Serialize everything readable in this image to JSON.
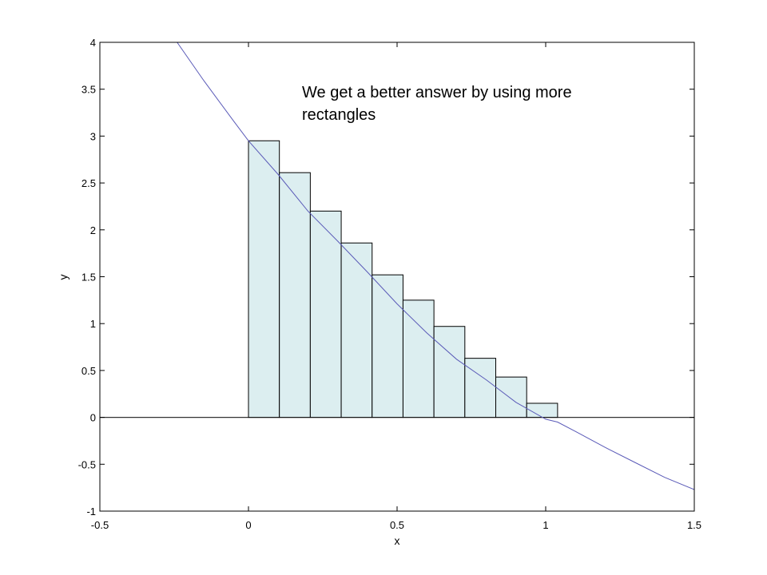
{
  "chart_data": {
    "type": "bar",
    "title": "",
    "xlabel": "x",
    "ylabel": "y",
    "xlim": [
      -0.5,
      1.5
    ],
    "ylim": [
      -1,
      4
    ],
    "xticks": [
      "-0.5",
      "0",
      "0.5",
      "1",
      "1.5"
    ],
    "yticks": [
      "-1",
      "-0.5",
      "0",
      "0.5",
      "1",
      "1.5",
      "2",
      "2.5",
      "3",
      "3.5",
      "4"
    ],
    "grid": false,
    "annotation": "We get a better answer by using more rectangles",
    "rectangles": {
      "x_start": [
        0.0,
        0.104,
        0.208,
        0.312,
        0.416,
        0.52,
        0.624,
        0.728,
        0.832,
        0.936
      ],
      "width": 0.104,
      "heights": [
        2.95,
        2.61,
        2.2,
        1.86,
        1.52,
        1.25,
        0.97,
        0.63,
        0.43,
        0.15
      ],
      "fill_color": "#dceef0",
      "edge_color": "#000000"
    },
    "curve": {
      "x": [
        -0.24,
        -0.15,
        -0.05,
        0.0,
        0.1,
        0.2,
        0.3,
        0.4,
        0.5,
        0.6,
        0.7,
        0.8,
        0.9,
        1.0,
        1.04,
        1.1,
        1.2,
        1.3,
        1.4,
        1.5
      ],
      "y": [
        4.0,
        3.59,
        3.16,
        2.95,
        2.59,
        2.2,
        1.88,
        1.55,
        1.21,
        0.9,
        0.62,
        0.4,
        0.16,
        -0.02,
        -0.05,
        -0.15,
        -0.32,
        -0.48,
        -0.64,
        -0.77
      ],
      "color": "#5b5bb8"
    },
    "zero_line_color": "#333333"
  }
}
